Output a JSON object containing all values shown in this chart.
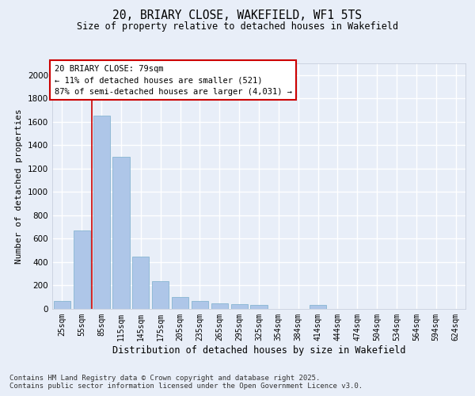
{
  "title_line1": "20, BRIARY CLOSE, WAKEFIELD, WF1 5TS",
  "title_line2": "Size of property relative to detached houses in Wakefield",
  "xlabel": "Distribution of detached houses by size in Wakefield",
  "ylabel": "Number of detached properties",
  "categories": [
    "25sqm",
    "55sqm",
    "85sqm",
    "115sqm",
    "145sqm",
    "175sqm",
    "205sqm",
    "235sqm",
    "265sqm",
    "295sqm",
    "325sqm",
    "354sqm",
    "384sqm",
    "414sqm",
    "444sqm",
    "474sqm",
    "504sqm",
    "534sqm",
    "564sqm",
    "594sqm",
    "624sqm"
  ],
  "values": [
    70,
    670,
    1650,
    1300,
    450,
    240,
    100,
    65,
    50,
    40,
    35,
    0,
    0,
    35,
    0,
    0,
    0,
    0,
    0,
    0,
    0
  ],
  "bar_color": "#aec6e8",
  "bar_edge_color": "#7aaecc",
  "background_color": "#e8eef8",
  "grid_color": "#ffffff",
  "vline_x": 1.5,
  "vline_color": "#cc0000",
  "annotation_text": "20 BRIARY CLOSE: 79sqm\n← 11% of detached houses are smaller (521)\n87% of semi-detached houses are larger (4,031) →",
  "footnote_line1": "Contains HM Land Registry data © Crown copyright and database right 2025.",
  "footnote_line2": "Contains public sector information licensed under the Open Government Licence v3.0.",
  "ylim": [
    0,
    2100
  ],
  "yticks": [
    0,
    200,
    400,
    600,
    800,
    1000,
    1200,
    1400,
    1600,
    1800,
    2000
  ]
}
